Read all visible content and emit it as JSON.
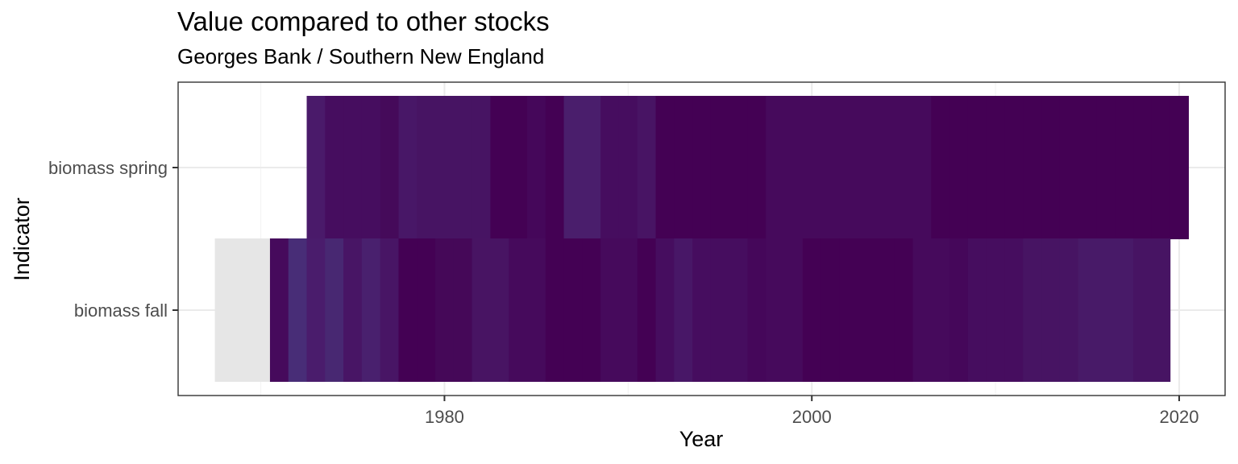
{
  "chart_data": {
    "type": "heatmap",
    "title": "Value compared to other stocks",
    "subtitle": "Georges Bank / Southern New England",
    "xlabel": "Year",
    "ylabel": "Indicator",
    "xlim": [
      1965.5,
      2022.5
    ],
    "x_ticks": [
      1980,
      2000,
      2020
    ],
    "grid": true,
    "legend": "none",
    "colors": {
      "missing": "#e6e6e6",
      "panel_border": "#333333",
      "grid_major": "#ebebeb",
      "grid_minor": "#f4f4f4"
    },
    "rows": [
      {
        "name": "biomass spring",
        "cells": [
          {
            "year": 1973,
            "color": "#4a1a6a"
          },
          {
            "year": 1974,
            "color": "#460d5f"
          },
          {
            "year": 1975,
            "color": "#460d5f"
          },
          {
            "year": 1976,
            "color": "#460d5f"
          },
          {
            "year": 1977,
            "color": "#450a5a"
          },
          {
            "year": 1978,
            "color": "#481767"
          },
          {
            "year": 1979,
            "color": "#471463"
          },
          {
            "year": 1980,
            "color": "#471463"
          },
          {
            "year": 1981,
            "color": "#471463"
          },
          {
            "year": 1982,
            "color": "#471463"
          },
          {
            "year": 1983,
            "color": "#440154"
          },
          {
            "year": 1984,
            "color": "#440154"
          },
          {
            "year": 1985,
            "color": "#45075a"
          },
          {
            "year": 1986,
            "color": "#440154"
          },
          {
            "year": 1987,
            "color": "#4a1e6c"
          },
          {
            "year": 1988,
            "color": "#4a1e6c"
          },
          {
            "year": 1989,
            "color": "#460d5f"
          },
          {
            "year": 1990,
            "color": "#460d5f"
          },
          {
            "year": 1991,
            "color": "#481464"
          },
          {
            "year": 1992,
            "color": "#440154"
          },
          {
            "year": 1993,
            "color": "#440154"
          },
          {
            "year": 1994,
            "color": "#440154"
          },
          {
            "year": 1995,
            "color": "#440154"
          },
          {
            "year": 1996,
            "color": "#440154"
          },
          {
            "year": 1997,
            "color": "#440154"
          },
          {
            "year": 1998,
            "color": "#460a5c"
          },
          {
            "year": 1999,
            "color": "#460a5c"
          },
          {
            "year": 2000,
            "color": "#460a5c"
          },
          {
            "year": 2001,
            "color": "#460a5c"
          },
          {
            "year": 2002,
            "color": "#460a5c"
          },
          {
            "year": 2003,
            "color": "#460a5c"
          },
          {
            "year": 2004,
            "color": "#460a5c"
          },
          {
            "year": 2005,
            "color": "#460a5c"
          },
          {
            "year": 2006,
            "color": "#460a5c"
          },
          {
            "year": 2007,
            "color": "#440154"
          },
          {
            "year": 2008,
            "color": "#440154"
          },
          {
            "year": 2009,
            "color": "#440154"
          },
          {
            "year": 2010,
            "color": "#440154"
          },
          {
            "year": 2011,
            "color": "#440154"
          },
          {
            "year": 2012,
            "color": "#440154"
          },
          {
            "year": 2013,
            "color": "#440154"
          },
          {
            "year": 2014,
            "color": "#440154"
          },
          {
            "year": 2015,
            "color": "#440154"
          },
          {
            "year": 2016,
            "color": "#440154"
          },
          {
            "year": 2017,
            "color": "#440154"
          },
          {
            "year": 2018,
            "color": "#440154"
          },
          {
            "year": 2019,
            "color": "#440154"
          },
          {
            "year": 2020,
            "color": "#440154"
          }
        ]
      },
      {
        "name": "biomass fall",
        "cells": [
          {
            "year": 1968,
            "color": "#e6e6e6",
            "missing": true
          },
          {
            "year": 1969,
            "color": "#e6e6e6",
            "missing": true
          },
          {
            "year": 1970,
            "color": "#e6e6e6",
            "missing": true
          },
          {
            "year": 1971,
            "color": "#460a5c"
          },
          {
            "year": 1972,
            "color": "#482d77"
          },
          {
            "year": 1973,
            "color": "#4a1c6c"
          },
          {
            "year": 1974,
            "color": "#482872"
          },
          {
            "year": 1975,
            "color": "#481565"
          },
          {
            "year": 1976,
            "color": "#49206e"
          },
          {
            "year": 1977,
            "color": "#481565"
          },
          {
            "year": 1978,
            "color": "#440154"
          },
          {
            "year": 1979,
            "color": "#440154"
          },
          {
            "year": 1980,
            "color": "#450858"
          },
          {
            "year": 1981,
            "color": "#450858"
          },
          {
            "year": 1982,
            "color": "#481463"
          },
          {
            "year": 1983,
            "color": "#481463"
          },
          {
            "year": 1984,
            "color": "#460a5c"
          },
          {
            "year": 1985,
            "color": "#460a5c"
          },
          {
            "year": 1986,
            "color": "#440154"
          },
          {
            "year": 1987,
            "color": "#440154"
          },
          {
            "year": 1988,
            "color": "#440154"
          },
          {
            "year": 1989,
            "color": "#460a5c"
          },
          {
            "year": 1990,
            "color": "#460a5c"
          },
          {
            "year": 1991,
            "color": "#440154"
          },
          {
            "year": 1992,
            "color": "#460d5f"
          },
          {
            "year": 1993,
            "color": "#481767"
          },
          {
            "year": 1994,
            "color": "#460d5f"
          },
          {
            "year": 1995,
            "color": "#460d5f"
          },
          {
            "year": 1996,
            "color": "#460d5f"
          },
          {
            "year": 1997,
            "color": "#45075a"
          },
          {
            "year": 1998,
            "color": "#460a5c"
          },
          {
            "year": 1999,
            "color": "#460a5c"
          },
          {
            "year": 2000,
            "color": "#440154"
          },
          {
            "year": 2001,
            "color": "#440154"
          },
          {
            "year": 2002,
            "color": "#440154"
          },
          {
            "year": 2003,
            "color": "#440154"
          },
          {
            "year": 2004,
            "color": "#440154"
          },
          {
            "year": 2005,
            "color": "#440154"
          },
          {
            "year": 2006,
            "color": "#460a5c"
          },
          {
            "year": 2007,
            "color": "#460a5c"
          },
          {
            "year": 2008,
            "color": "#45075a"
          },
          {
            "year": 2009,
            "color": "#460d5f"
          },
          {
            "year": 2010,
            "color": "#460d5f"
          },
          {
            "year": 2011,
            "color": "#460d5f"
          },
          {
            "year": 2012,
            "color": "#471463"
          },
          {
            "year": 2013,
            "color": "#471463"
          },
          {
            "year": 2014,
            "color": "#471463"
          },
          {
            "year": 2015,
            "color": "#481a68"
          },
          {
            "year": 2016,
            "color": "#481a68"
          },
          {
            "year": 2017,
            "color": "#481a68"
          },
          {
            "year": 2018,
            "color": "#471463"
          },
          {
            "year": 2019,
            "color": "#471463"
          }
        ]
      }
    ]
  }
}
